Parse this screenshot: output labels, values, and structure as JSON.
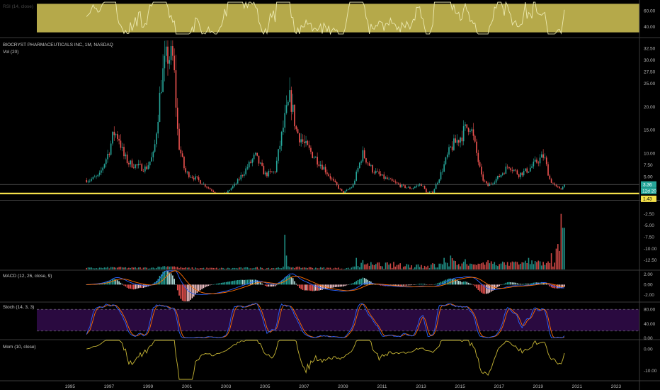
{
  "window": {
    "background": "#000000",
    "divider_color": "#3a3a3a"
  },
  "chart_data": [
    {
      "type": "line",
      "pane": "rsi",
      "title": "RSI (14, close)",
      "band_color": "#b5a94a",
      "line_color": "#ece9b0",
      "yticks": [
        {
          "value": 40,
          "label": "40.00"
        },
        {
          "value": 60,
          "label": "60.00"
        }
      ],
      "ylim": [
        30,
        72
      ],
      "band": [
        33,
        69
      ]
    },
    {
      "type": "candlestick",
      "pane": "price",
      "title": "BIOCRYST PHARMACEUTICALS INC, 1M, NASDAQ",
      "subtitle": "Vol (20)",
      "up_color": "#26a69a",
      "down_color": "#ef5350",
      "ylim": [
        0.2,
        34.2
      ],
      "yticks": [
        {
          "value": 32.5,
          "label": "32.50"
        },
        {
          "value": 30,
          "label": "30.00"
        },
        {
          "value": 27.5,
          "label": "27.50"
        },
        {
          "value": 25,
          "label": "25.00"
        },
        {
          "value": 20,
          "label": "20.00"
        },
        {
          "value": 15,
          "label": "15.00"
        },
        {
          "value": 10,
          "label": "10.00"
        },
        {
          "value": 7.5,
          "label": "7.50"
        },
        {
          "value": 5,
          "label": "5.00"
        }
      ],
      "support_line": {
        "value": 1.43,
        "label": "1.43",
        "color": "#f5e14a"
      },
      "last_price": {
        "value": 3.36,
        "label": "3.36",
        "color": "#26a69a"
      },
      "countdown": {
        "value": 3.36,
        "label": "12d 20"
      },
      "close": [
        [
          1996.0,
          4.3
        ],
        [
          1996.5,
          5.2
        ],
        [
          1997.0,
          10.5
        ],
        [
          1997.25,
          14.5
        ],
        [
          1997.5,
          13.5
        ],
        [
          1997.75,
          9.5
        ],
        [
          1998.0,
          8.0
        ],
        [
          1998.5,
          7.2
        ],
        [
          1998.9,
          6.8
        ],
        [
          1999.3,
          9.8
        ],
        [
          1999.7,
          26.0
        ],
        [
          2000.0,
          31.0
        ],
        [
          2000.3,
          30.0
        ],
        [
          2000.55,
          12.5
        ],
        [
          2000.9,
          6.0
        ],
        [
          2001.5,
          4.5
        ],
        [
          2002.2,
          2.3
        ],
        [
          2002.6,
          1.3
        ],
        [
          2003.0,
          1.5
        ],
        [
          2003.5,
          3.5
        ],
        [
          2004.0,
          6.5
        ],
        [
          2004.5,
          9.5
        ],
        [
          2005.0,
          5.5
        ],
        [
          2005.5,
          6.0
        ],
        [
          2006.0,
          17.0
        ],
        [
          2006.3,
          22.0
        ],
        [
          2006.6,
          15.0
        ],
        [
          2007.0,
          12.0
        ],
        [
          2007.5,
          9.5
        ],
        [
          2008.0,
          7.0
        ],
        [
          2008.5,
          4.0
        ],
        [
          2009.0,
          1.5
        ],
        [
          2009.5,
          3.0
        ],
        [
          2010.0,
          10.0
        ],
        [
          2010.5,
          6.5
        ],
        [
          2011.0,
          5.0
        ],
        [
          2011.5,
          4.0
        ],
        [
          2012.0,
          3.0
        ],
        [
          2012.5,
          2.5
        ],
        [
          2013.0,
          3.5
        ],
        [
          2013.3,
          1.6
        ],
        [
          2013.6,
          1.7
        ],
        [
          2014.0,
          5.5
        ],
        [
          2014.5,
          11.0
        ],
        [
          2015.0,
          13.5
        ],
        [
          2015.5,
          16.5
        ],
        [
          2015.8,
          11.0
        ],
        [
          2016.1,
          5.0
        ],
        [
          2016.4,
          3.0
        ],
        [
          2017.0,
          5.0
        ],
        [
          2017.5,
          7.5
        ],
        [
          2018.0,
          5.5
        ],
        [
          2018.5,
          6.5
        ],
        [
          2019.0,
          8.5
        ],
        [
          2019.3,
          9.5
        ],
        [
          2019.6,
          4.5
        ],
        [
          2019.9,
          2.8
        ],
        [
          2020.2,
          2.5
        ],
        [
          2020.4,
          3.36
        ]
      ]
    },
    {
      "type": "bar",
      "pane": "volume",
      "yticks": [
        {
          "value": -2.5,
          "label": "-2.50"
        },
        {
          "value": -5,
          "label": "-5.00"
        },
        {
          "value": -7.5,
          "label": "-7.50"
        },
        {
          "value": -10,
          "label": "-10.00"
        },
        {
          "value": -12.5,
          "label": "-12.50"
        }
      ],
      "ylim": [
        -14.5,
        0.2
      ],
      "spikes": [
        [
          2006.0,
          7.5
        ],
        [
          2006.1,
          3.0
        ],
        [
          2009.7,
          2.5
        ],
        [
          2010.0,
          2.0
        ],
        [
          2014.2,
          2.5
        ],
        [
          2014.5,
          3.0
        ],
        [
          2018.5,
          2.5
        ],
        [
          2019.7,
          3.5
        ],
        [
          2019.9,
          4.5
        ],
        [
          2020.0,
          5.5
        ],
        [
          2020.1,
          4.0
        ],
        [
          2020.2,
          12.0
        ],
        [
          2020.3,
          9.0
        ]
      ]
    },
    {
      "type": "bar",
      "pane": "macd",
      "title": "MACD (12, 26, close, 9)",
      "yticks": [
        {
          "value": 2,
          "label": "2.00"
        },
        {
          "value": 0,
          "label": "0.00"
        },
        {
          "value": -2,
          "label": "-2.00"
        }
      ],
      "ylim": [
        -3.3,
        2.7
      ],
      "macd_color": "#2962ff",
      "signal_color": "#ff6d00"
    },
    {
      "type": "line",
      "pane": "stoch",
      "title": "Stoch (14, 3, 3)",
      "band_color": "#2a0a40",
      "k_color": "#2962ff",
      "d_color": "#ff6d00",
      "yticks": [
        {
          "value": 80,
          "label": "80.00"
        },
        {
          "value": 40,
          "label": "40.00"
        },
        {
          "value": 0,
          "label": "0.00"
        }
      ],
      "ylim": [
        -2,
        98
      ],
      "band": [
        20,
        80
      ]
    },
    {
      "type": "line",
      "pane": "mom",
      "title": "Mom (10, close)",
      "line_color": "#c8b735",
      "yticks": [
        {
          "value": 0,
          "label": "0.00"
        },
        {
          "value": -10,
          "label": "-10.00"
        }
      ],
      "ylim": [
        -14,
        4
      ]
    }
  ],
  "time_axis": {
    "xlim": [
      1993.3,
      2024.2
    ],
    "ticks": [
      "1995",
      "1997",
      "1999",
      "2001",
      "2003",
      "2005",
      "2007",
      "2009",
      "2011",
      "2013",
      "2015",
      "2017",
      "2019",
      "2021",
      "2023"
    ]
  }
}
